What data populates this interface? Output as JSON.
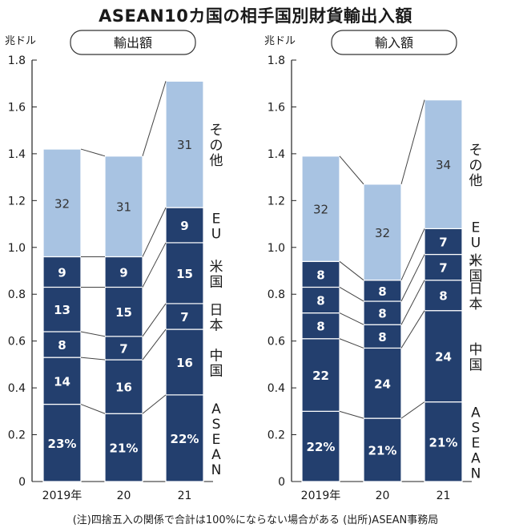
{
  "chart_data": {
    "type": "bar",
    "title": "ASEAN10カ国の相手国別財貨輸出入額",
    "note": "(注)四捨五入の関係で合計は100%にならない場合がある (出所)ASEAN事務局",
    "unit": "兆ドル",
    "ylim": [
      0,
      1.8
    ],
    "yticks": [
      "0",
      "0.2",
      "0.4",
      "0.6",
      "0.8",
      "1.0",
      "1.2",
      "1.4",
      "1.6",
      "1.8"
    ],
    "categories": [
      "2019年",
      "20",
      "21"
    ],
    "legend_order": [
      "ASEAN",
      "中国",
      "日本",
      "米国",
      "EU",
      "その他"
    ],
    "colors": {
      "dark": "#233f6e",
      "light": "#a8c3e2",
      "text_dark": "#ffffff",
      "text_light": "#333333",
      "frame": "#444444"
    },
    "panels": [
      {
        "name": "輸出額",
        "totals": [
          1.42,
          1.39,
          1.71
        ],
        "cumulative": {
          "ASEAN": [
            0.33,
            0.29,
            0.37
          ],
          "中国": [
            0.53,
            0.52,
            0.65
          ],
          "日本": [
            0.64,
            0.62,
            0.76
          ],
          "米国": [
            0.83,
            0.83,
            1.02
          ],
          "EU": [
            0.96,
            0.96,
            1.17
          ],
          "その他": [
            1.42,
            1.39,
            1.71
          ]
        },
        "labels": {
          "ASEAN": [
            "23%",
            "21%",
            "22%"
          ],
          "中国": [
            "14",
            "16",
            "16"
          ],
          "日本": [
            "8",
            "7",
            "7"
          ],
          "米国": [
            "13",
            "15",
            "15"
          ],
          "EU": [
            "9",
            "9",
            "9"
          ],
          "その他": [
            "32",
            "31",
            "31"
          ]
        },
        "side_labels": {
          "その他": "その他",
          "EU": "EU",
          "米国": "米国",
          "日本": "日本",
          "中国": "中国",
          "ASEAN": "ASEAN"
        }
      },
      {
        "name": "輸入額",
        "totals": [
          1.39,
          1.27,
          1.63
        ],
        "cumulative": {
          "ASEAN": [
            0.3,
            0.27,
            0.34
          ],
          "中国": [
            0.61,
            0.57,
            0.73
          ],
          "日本": [
            0.72,
            0.67,
            0.86
          ],
          "米国": [
            0.83,
            0.77,
            0.97
          ],
          "EU": [
            0.94,
            0.86,
            1.08
          ],
          "その他": [
            1.39,
            1.27,
            1.63
          ]
        },
        "labels": {
          "ASEAN": [
            "22%",
            "21%",
            "21%"
          ],
          "中国": [
            "22",
            "24",
            "24"
          ],
          "日本": [
            "8",
            "8",
            "8"
          ],
          "米国": [
            "8",
            "8",
            "7"
          ],
          "EU": [
            "8",
            "8",
            "7"
          ],
          "その他": [
            "32",
            "32",
            "34"
          ]
        },
        "side_labels": {
          "その他": "その他",
          "EU": "EU」",
          "米国": "米国",
          "日本": "日本",
          "中国": "中国",
          "ASEAN": "ASEAN"
        }
      }
    ]
  }
}
